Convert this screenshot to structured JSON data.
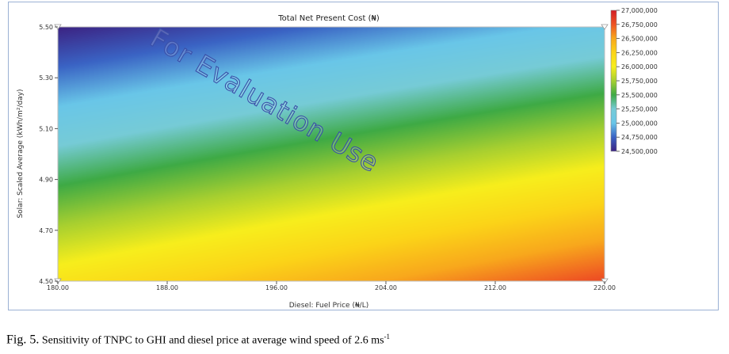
{
  "chart_data": {
    "type": "heatmap",
    "title": "Total Net Present Cost (₦)",
    "xlabel": "Diesel: Fuel Price (₦/L)",
    "ylabel": "Solar: Scaled Average (kWh/m²/day)",
    "xlim": [
      180,
      220
    ],
    "ylim": [
      4.5,
      5.5
    ],
    "x_ticks": [
      "180.00",
      "188.00",
      "196.00",
      "204.00",
      "212.00",
      "220.00"
    ],
    "y_ticks": [
      "5.50",
      "5.30",
      "5.10",
      "4.90",
      "4.70",
      "4.50"
    ],
    "x_tick_values": [
      180,
      188,
      196,
      204,
      212,
      220
    ],
    "y_tick_values": [
      5.5,
      5.3,
      5.1,
      4.9,
      4.7,
      4.5
    ],
    "colorbar_ticks": [
      "27,000,000",
      "26,750,000",
      "26,500,000",
      "26,250,000",
      "26,000,000",
      "25,750,000",
      "25,500,000",
      "25,250,000",
      "25,000,000",
      "24,750,000",
      "24,500,000"
    ],
    "colorbar_values": [
      27000000,
      26750000,
      26500000,
      26250000,
      26000000,
      25750000,
      25500000,
      25250000,
      25000000,
      24750000,
      24500000
    ],
    "colorscale": [
      {
        "value": 24500000,
        "color": "#3b2383"
      },
      {
        "value": 24750000,
        "color": "#3a63c4"
      },
      {
        "value": 25000000,
        "color": "#69c6e8"
      },
      {
        "value": 25250000,
        "color": "#76cbd6"
      },
      {
        "value": 25500000,
        "color": "#3eaa45"
      },
      {
        "value": 25750000,
        "color": "#a6cf30"
      },
      {
        "value": 26000000,
        "color": "#f7ee1c"
      },
      {
        "value": 26250000,
        "color": "#fbd418"
      },
      {
        "value": 26500000,
        "color": "#f8a81c"
      },
      {
        "value": 26750000,
        "color": "#ee5323"
      },
      {
        "value": 27000000,
        "color": "#d21d24"
      }
    ],
    "corner_values": {
      "x180_y5.50": 24500000,
      "x220_y5.50": 25050000,
      "x180_y4.50": 26100000,
      "x220_y4.50": 26780000
    },
    "watermark": "For Evaluation Use"
  },
  "caption": {
    "label": "Fig. 5.",
    "text": "Sensitivity of TNPC to GHI and diesel price at average wind speed of 2.6 ms",
    "superscript": "-1"
  }
}
